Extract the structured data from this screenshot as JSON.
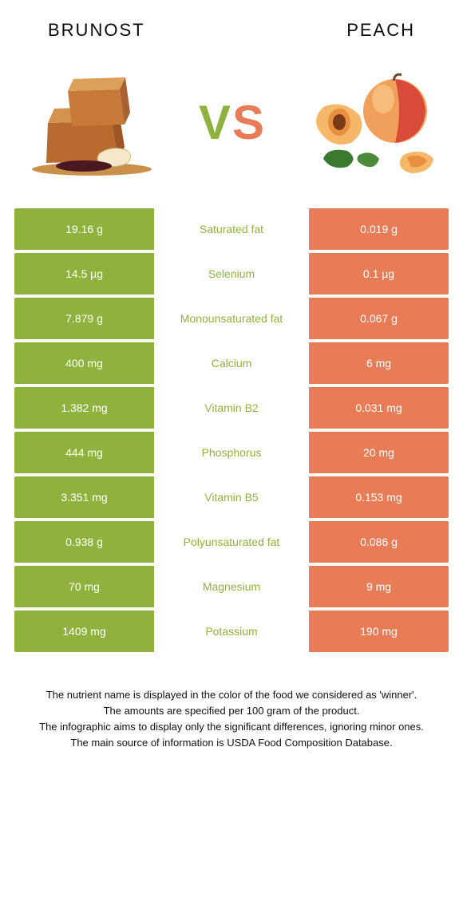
{
  "header": {
    "left_title": "BRUNOST",
    "right_title": "PEACH"
  },
  "vs": {
    "v": "V",
    "s": "S"
  },
  "colors": {
    "left": "#8fb23f",
    "right": "#e77c56",
    "left_text": "#8fb23f",
    "right_text": "#e77c56",
    "row_text_white": "#ffffff"
  },
  "rows": [
    {
      "nutrient": "Saturated fat",
      "left": "19.16 g",
      "right": "0.019 g",
      "winner": "left"
    },
    {
      "nutrient": "Selenium",
      "left": "14.5 µg",
      "right": "0.1 µg",
      "winner": "left"
    },
    {
      "nutrient": "Monounsaturated fat",
      "left": "7.879 g",
      "right": "0.067 g",
      "winner": "left"
    },
    {
      "nutrient": "Calcium",
      "left": "400 mg",
      "right": "6 mg",
      "winner": "left"
    },
    {
      "nutrient": "Vitamin B2",
      "left": "1.382 mg",
      "right": "0.031 mg",
      "winner": "left"
    },
    {
      "nutrient": "Phosphorus",
      "left": "444 mg",
      "right": "20 mg",
      "winner": "left"
    },
    {
      "nutrient": "Vitamin B5",
      "left": "3.351 mg",
      "right": "0.153 mg",
      "winner": "left"
    },
    {
      "nutrient": "Polyunsaturated fat",
      "left": "0.938 g",
      "right": "0.086 g",
      "winner": "left"
    },
    {
      "nutrient": "Magnesium",
      "left": "70 mg",
      "right": "9 mg",
      "winner": "left"
    },
    {
      "nutrient": "Potassium",
      "left": "1409 mg",
      "right": "190 mg",
      "winner": "left"
    }
  ],
  "footer": {
    "line1": "The nutrient name is displayed in the color of the food we considered as 'winner'.",
    "line2": "The amounts are specified per 100 gram of the product.",
    "line3": "The infographic aims to display only the significant differences, ignoring minor ones.",
    "line4": "The main source of information is USDA Food Composition Database."
  }
}
